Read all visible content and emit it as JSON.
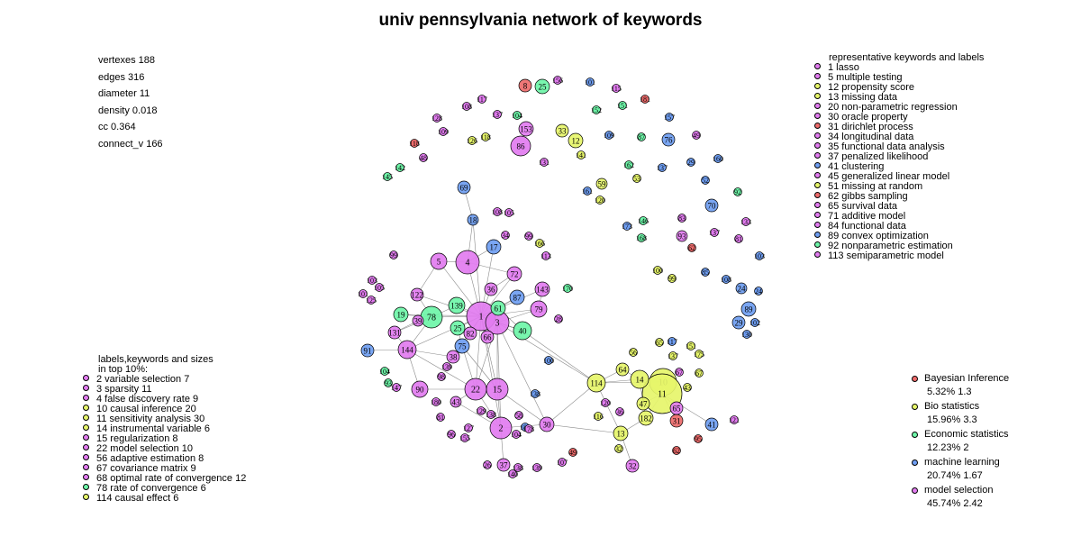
{
  "title": "univ pennsylvania network of keywords",
  "stats": {
    "vertexes": "vertexes 188",
    "edges": "edges 316",
    "diameter": "diameter 11",
    "density": "density 0.018",
    "cc": "cc 0.364",
    "connect_v": "connect_v 166"
  },
  "representative": {
    "heading": "representative keywords and labels",
    "items": [
      {
        "text": "1 lasso",
        "color": "#e27cf0"
      },
      {
        "text": "5 multiple testing",
        "color": "#e27cf0"
      },
      {
        "text": "12 propensity score",
        "color": "#e6f56a"
      },
      {
        "text": "13 missing data",
        "color": "#e6f56a"
      },
      {
        "text": "20 non-parametric regression",
        "color": "#e27cf0"
      },
      {
        "text": "30 oracle property",
        "color": "#e27cf0"
      },
      {
        "text": "31 dirichlet process",
        "color": "#ee6b6b"
      },
      {
        "text": "34 longitudinal data",
        "color": "#e27cf0"
      },
      {
        "text": "35 functional data analysis",
        "color": "#e27cf0"
      },
      {
        "text": "37 penalized likelihood",
        "color": "#e27cf0"
      },
      {
        "text": "41 clustering",
        "color": "#6f9ef2"
      },
      {
        "text": "45 generalized linear model",
        "color": "#e27cf0"
      },
      {
        "text": "51 missing at random",
        "color": "#e6f56a"
      },
      {
        "text": "62 gibbs sampling",
        "color": "#ee6b6b"
      },
      {
        "text": "65 survival data",
        "color": "#e27cf0"
      },
      {
        "text": "71 additive model",
        "color": "#e27cf0"
      },
      {
        "text": "84 functional data",
        "color": "#e27cf0"
      },
      {
        "text": "89 convex optimization",
        "color": "#6f9ef2"
      },
      {
        "text": "92 nonparametric estimation",
        "color": "#6ef5a8"
      },
      {
        "text": "113 semiparametric model",
        "color": "#e27cf0"
      }
    ]
  },
  "top10": {
    "heading1": "labels,keywords and sizes",
    "heading2": "in top 10%:",
    "items": [
      {
        "text": "2 variable selection 7",
        "color": "#e27cf0"
      },
      {
        "text": "3 sparsity 11",
        "color": "#e27cf0"
      },
      {
        "text": "4 false discovery rate 9",
        "color": "#e27cf0"
      },
      {
        "text": "10 causal inference 20",
        "color": "#e6f56a"
      },
      {
        "text": "11 sensitivity analysis 30",
        "color": "#e6f56a"
      },
      {
        "text": "14 instrumental variable 6",
        "color": "#e6f56a"
      },
      {
        "text": "15 regularization 8",
        "color": "#e27cf0"
      },
      {
        "text": "22 model selection 10",
        "color": "#e27cf0"
      },
      {
        "text": "56 adaptive estimation 8",
        "color": "#e27cf0"
      },
      {
        "text": "67 covariance matrix 9",
        "color": "#e27cf0"
      },
      {
        "text": "68 optimal rate of convergence 12",
        "color": "#e27cf0"
      },
      {
        "text": "78 rate of convergence 6",
        "color": "#6ef5a8"
      },
      {
        "text": "114 causal effect 6",
        "color": "#e6f56a"
      }
    ]
  },
  "categories": [
    {
      "name": "Bayesian Inference",
      "value": "5.32% 1.3",
      "color": "#ee6b6b"
    },
    {
      "name": "Bio statistics",
      "value": "15.96% 3.3",
      "color": "#e6f56a"
    },
    {
      "name": "Economic statistics",
      "value": "12.23% 2",
      "color": "#6ef5a8"
    },
    {
      "name": "machine learning",
      "value": "20.74% 1.67",
      "color": "#6f9ef2"
    },
    {
      "name": "model selection",
      "value": "45.74% 2.42",
      "color": "#e27cf0"
    }
  ],
  "colors": {
    "model_selection": "#e27cf0",
    "bio_statistics": "#e6f56a",
    "economic_statistics": "#6ef5a8",
    "machine_learning": "#6f9ef2",
    "bayesian_inference": "#ee6b6b"
  },
  "network": {
    "nodes": [
      {
        "id": "1",
        "c": "m",
        "s": 16
      },
      {
        "id": "2",
        "c": "m",
        "s": 12
      },
      {
        "id": "3",
        "c": "m",
        "s": 13
      },
      {
        "id": "4",
        "c": "m",
        "s": 13
      },
      {
        "id": "5",
        "c": "m",
        "s": 9
      },
      {
        "id": "10",
        "c": "b",
        "s": 15
      },
      {
        "id": "11",
        "c": "b",
        "s": 22
      },
      {
        "id": "14",
        "c": "b",
        "s": 10
      },
      {
        "id": "15",
        "c": "m",
        "s": 12
      },
      {
        "id": "22",
        "c": "m",
        "s": 12
      },
      {
        "id": "78",
        "c": "e",
        "s": 12
      },
      {
        "id": "144",
        "c": "m",
        "s": 10
      },
      {
        "id": "90",
        "c": "m",
        "s": 9
      },
      {
        "id": "114",
        "c": "b",
        "s": 10
      },
      {
        "id": "40",
        "c": "e",
        "s": 10
      },
      {
        "id": "79",
        "c": "m",
        "s": 9
      },
      {
        "id": "86",
        "c": "m",
        "s": 11
      },
      {
        "id": "30",
        "c": "m",
        "s": 8
      },
      {
        "id": "61",
        "c": "e",
        "s": 8
      },
      {
        "id": "72",
        "c": "m",
        "s": 8
      },
      {
        "id": "17",
        "c": "l",
        "s": 8
      },
      {
        "id": "87",
        "c": "l",
        "s": 8
      },
      {
        "id": "143",
        "c": "m",
        "s": 8
      },
      {
        "id": "139",
        "c": "e",
        "s": 9
      },
      {
        "id": "25",
        "c": "e",
        "s": 8
      },
      {
        "id": "12",
        "c": "b",
        "s": 8
      },
      {
        "id": "75",
        "c": "l",
        "s": 8
      },
      {
        "id": "182",
        "c": "b",
        "s": 8
      },
      {
        "id": "13",
        "c": "b",
        "s": 8
      },
      {
        "id": "31",
        "c": "r",
        "s": 7
      },
      {
        "id": "47",
        "c": "b",
        "s": 7
      },
      {
        "id": "64",
        "c": "b",
        "s": 7
      },
      {
        "id": "19",
        "c": "e",
        "s": 8
      },
      {
        "id": "153",
        "c": "m",
        "s": 8
      },
      {
        "id": "25b",
        "c": "e",
        "s": 8
      },
      {
        "id": "8",
        "c": "r",
        "s": 7
      },
      {
        "id": "89",
        "c": "l",
        "s": 8
      },
      {
        "id": "70",
        "c": "l",
        "s": 7
      },
      {
        "id": "69",
        "c": "l",
        "s": 7
      },
      {
        "id": "91",
        "c": "l",
        "s": 7
      },
      {
        "id": "41",
        "c": "l",
        "s": 7
      },
      {
        "id": "65",
        "c": "m",
        "s": 7
      },
      {
        "id": "37",
        "c": "m",
        "s": 7
      },
      {
        "id": "33",
        "c": "b",
        "s": 7
      },
      {
        "id": "32",
        "c": "m",
        "s": 7
      },
      {
        "id": "59",
        "c": "b",
        "s": 6
      },
      {
        "id": "76",
        "c": "l",
        "s": 7
      },
      {
        "id": "18",
        "c": "l",
        "s": 6
      },
      {
        "id": "122",
        "c": "m",
        "s": 7
      },
      {
        "id": "131",
        "c": "m",
        "s": 7
      },
      {
        "id": "29",
        "c": "l",
        "s": 7
      },
      {
        "id": "38",
        "c": "m",
        "s": 7
      },
      {
        "id": "82",
        "c": "m",
        "s": 7
      },
      {
        "id": "66",
        "c": "m",
        "s": 7
      },
      {
        "id": "93",
        "c": "m",
        "s": 6
      },
      {
        "id": "36",
        "c": "m",
        "s": 7
      },
      {
        "id": "43",
        "c": "m",
        "s": 6
      },
      {
        "id": "39",
        "c": "m",
        "s": 6
      },
      {
        "id": "24",
        "c": "l",
        "s": 6
      }
    ]
  }
}
